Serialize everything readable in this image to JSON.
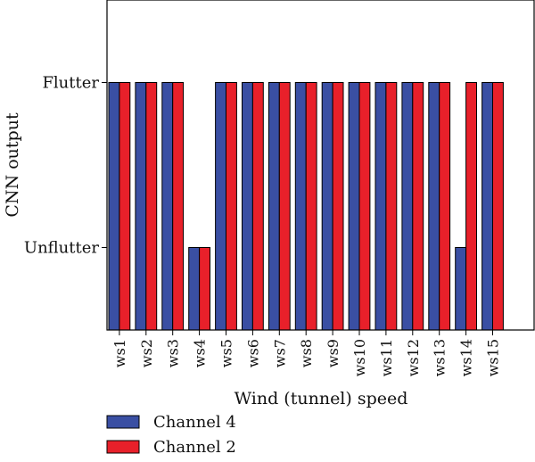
{
  "chart_data": {
    "type": "bar",
    "categories": [
      "ws1",
      "ws2",
      "ws3",
      "ws4",
      "ws5",
      "ws6",
      "ws7",
      "ws8",
      "ws9",
      "ws10",
      "ws11",
      "ws12",
      "ws13",
      "ws14",
      "ws15"
    ],
    "series": [
      {
        "name": "Channel 4",
        "color": "#3a4fa3",
        "values": [
          1,
          1,
          1,
          0,
          1,
          1,
          1,
          1,
          1,
          1,
          1,
          1,
          1,
          0,
          1
        ]
      },
      {
        "name": "Channel 2",
        "color": "#e8202a",
        "values": [
          1,
          1,
          1,
          0,
          1,
          1,
          1,
          1,
          1,
          1,
          1,
          1,
          1,
          1,
          1
        ]
      }
    ],
    "y_ticks": [
      {
        "value": 1,
        "label": "Flutter"
      },
      {
        "value": 0,
        "label": "Unflutter"
      }
    ],
    "ylim": [
      -0.5,
      1.5
    ],
    "xlabel": "Wind (tunnel) speed",
    "ylabel": "CNN output",
    "grid": false,
    "legend_position": "bottom-left"
  }
}
